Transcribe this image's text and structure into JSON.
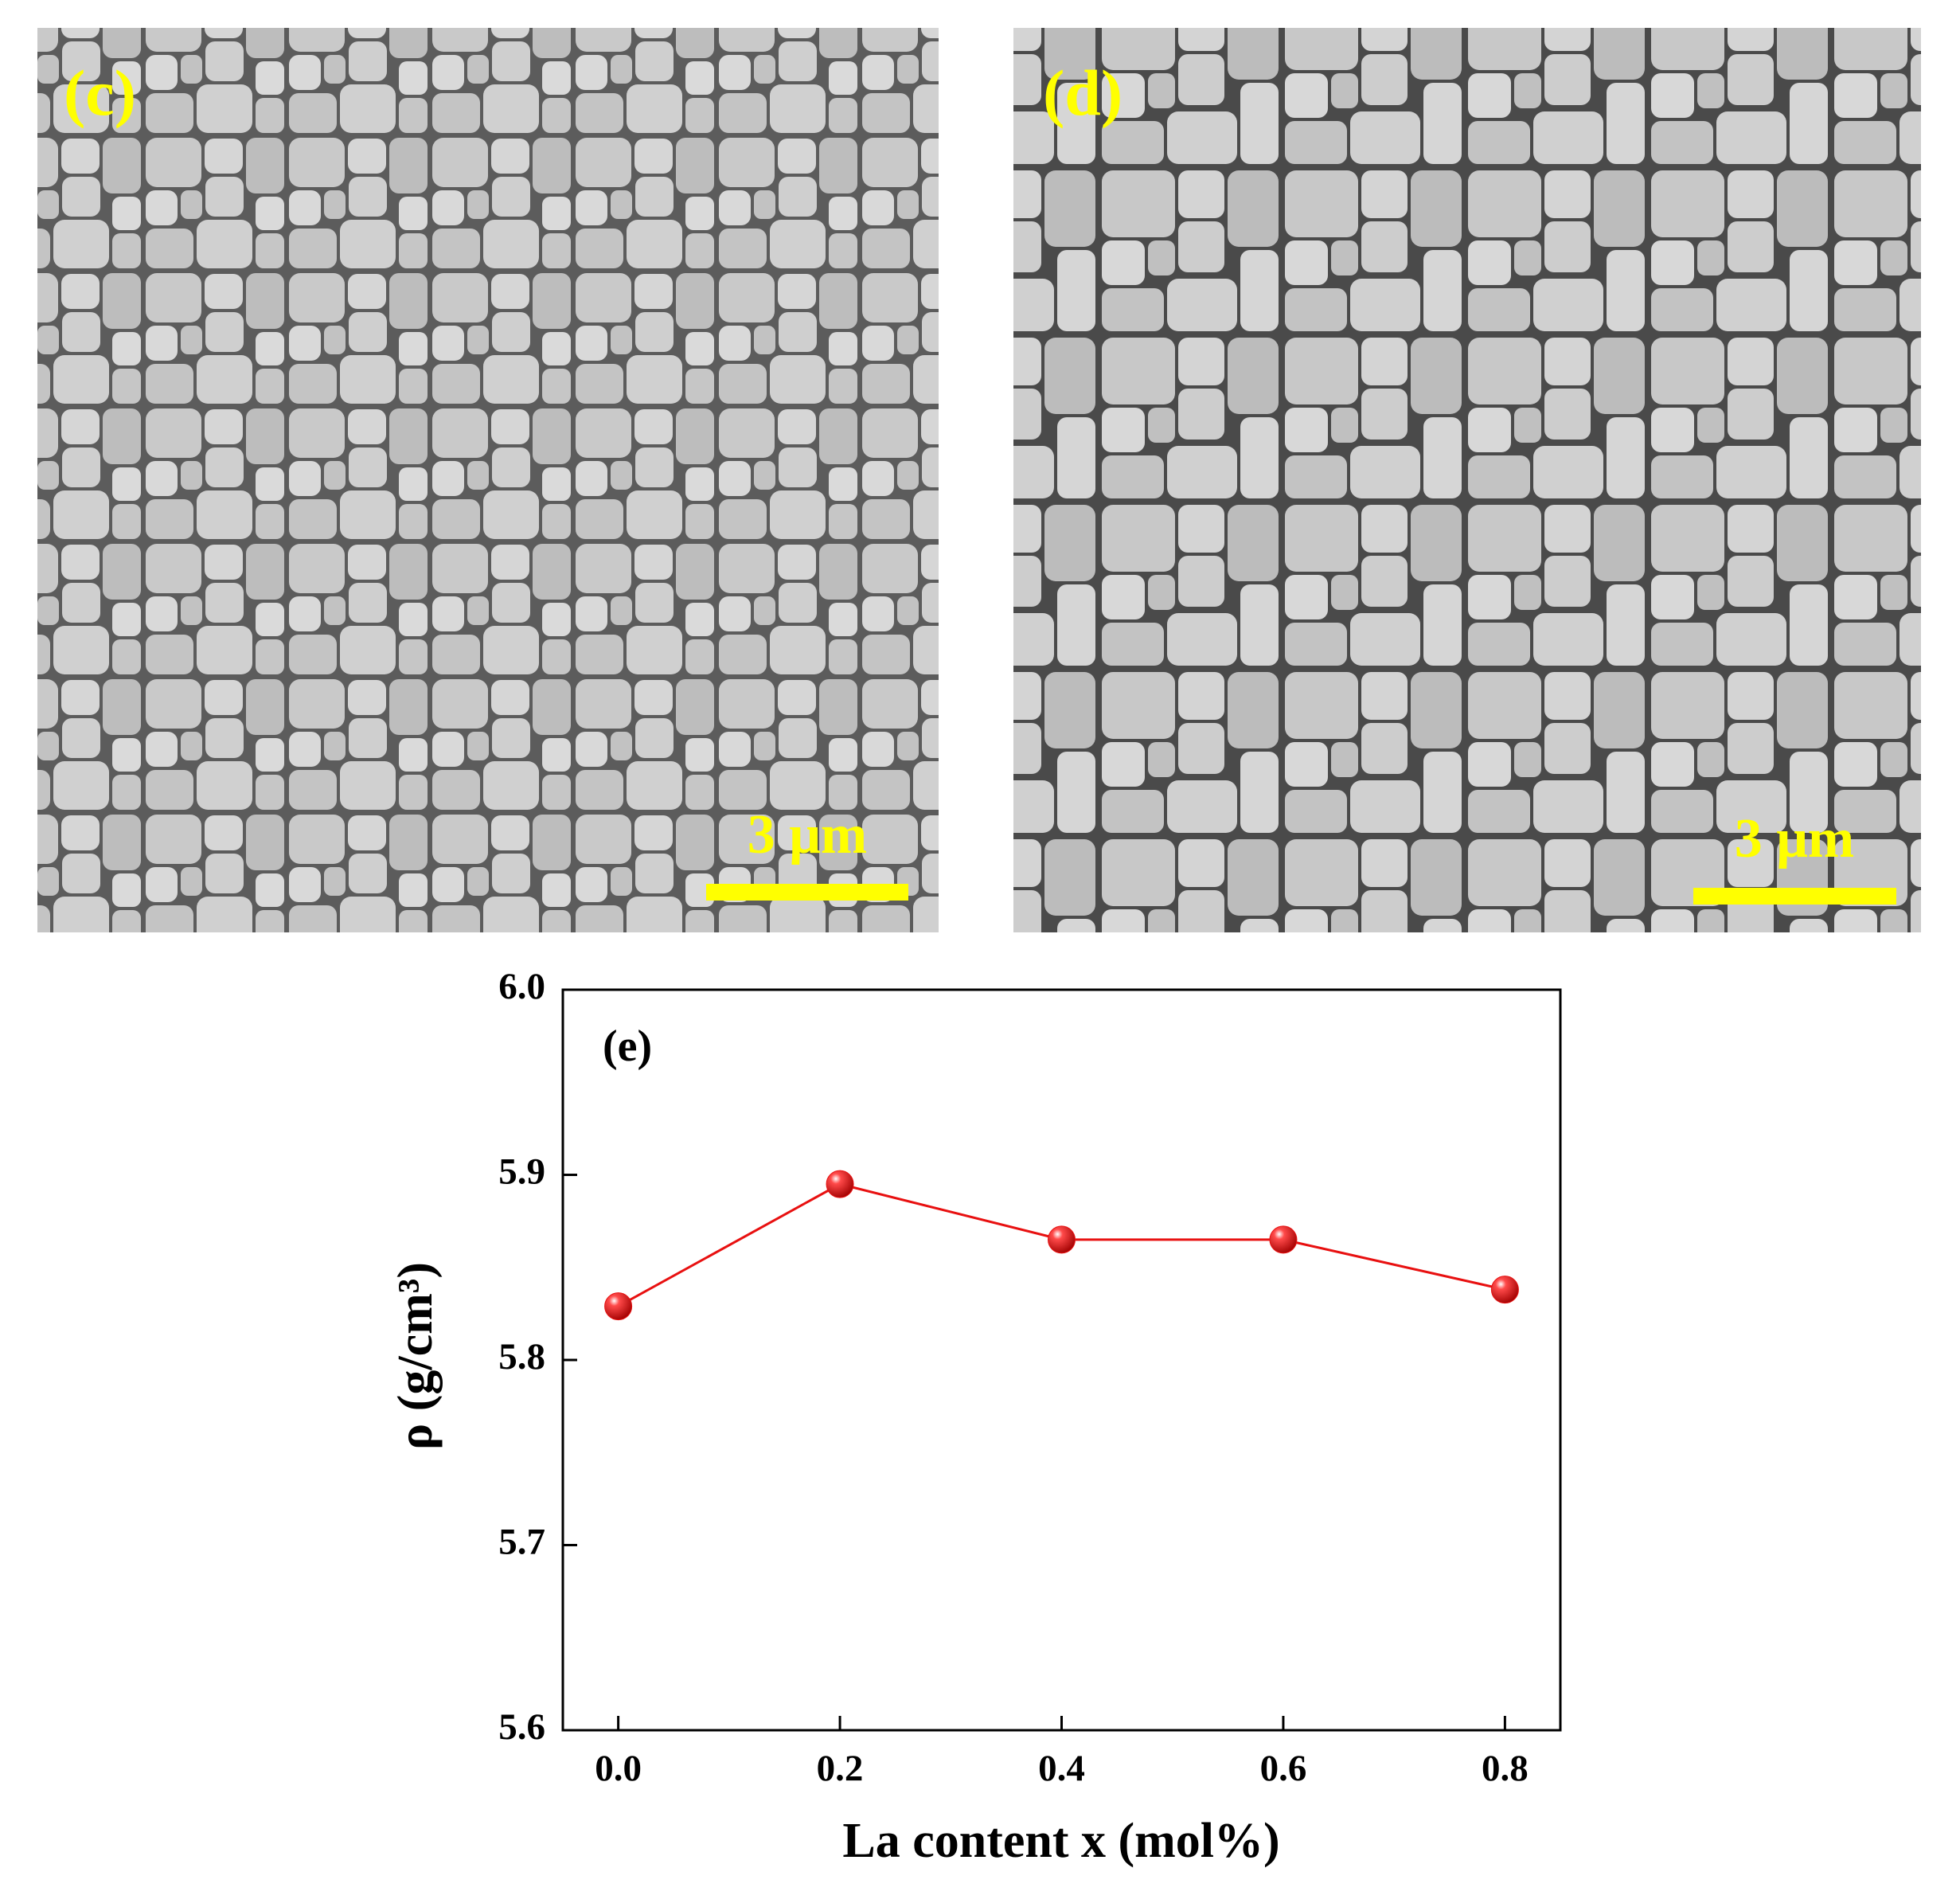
{
  "images": [
    {
      "label": "(c)",
      "scale_bar": "3 μm"
    },
    {
      "label": "(d)",
      "scale_bar": "3 μm"
    }
  ],
  "chart_data": {
    "type": "line",
    "annotation": "(e)",
    "x": [
      0,
      0.2,
      0.4,
      0.6,
      0.8
    ],
    "values": [
      5.829,
      5.895,
      5.865,
      5.865,
      5.838
    ],
    "color": "#e81010",
    "xlim": [
      -0.05,
      0.85
    ],
    "ylim": [
      5.6,
      6.0
    ],
    "xticks": [
      {
        "value": 0,
        "label": "0.0"
      },
      0.2,
      0.4,
      0.6,
      0.8
    ],
    "yticks": [
      5.6,
      5.7,
      5.8,
      5.9,
      {
        "value": 6,
        "label": "6.0"
      }
    ],
    "xlabel": "La content x (mol%)",
    "ylabel": "ρ (g/cm³)"
  }
}
